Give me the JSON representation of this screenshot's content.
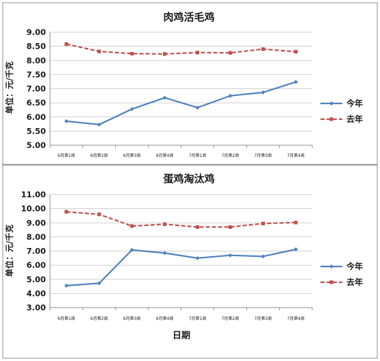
{
  "chart_data": [
    {
      "type": "line",
      "title": "肉鸡活毛鸡",
      "ylabel": "单位：元/千克",
      "xlabel": "",
      "categories": [
        "6月第1周",
        "6月第2周",
        "6月第3周",
        "6月第4周",
        "7月第1周",
        "7月第2周",
        "7月第3周",
        "7月第4周"
      ],
      "ylim": [
        5.0,
        9.0
      ],
      "yticks": [
        "5.00",
        "5.50",
        "6.00",
        "6.50",
        "7.00",
        "7.50",
        "8.00",
        "8.50",
        "9.00"
      ],
      "series": [
        {
          "name": "今年",
          "color": "#4f81bd",
          "dash": false,
          "marker": "diamond",
          "values": [
            5.85,
            5.73,
            6.28,
            6.68,
            6.33,
            6.75,
            6.87,
            7.24
          ]
        },
        {
          "name": "去年",
          "color": "#c0504d",
          "dash": true,
          "marker": "square",
          "values": [
            8.58,
            8.32,
            8.24,
            8.23,
            8.28,
            8.27,
            8.4,
            8.31
          ]
        }
      ],
      "legend": "right",
      "grid": true
    },
    {
      "type": "line",
      "title": "蛋鸡淘汰鸡",
      "ylabel": "单位：元/千克",
      "xlabel": "日期",
      "categories": [
        "6月第1周",
        "6月第2周",
        "6月第3周",
        "6月第4周",
        "7月第1周",
        "7月第2周",
        "7月第3周",
        "7月第4周"
      ],
      "ylim": [
        3.0,
        11.0
      ],
      "yticks": [
        "3.00",
        "4.00",
        "5.00",
        "6.00",
        "7.00",
        "8.00",
        "9.00",
        "10.00",
        "11.00"
      ],
      "series": [
        {
          "name": "今年",
          "color": "#4f81bd",
          "dash": false,
          "marker": "diamond",
          "values": [
            4.55,
            4.72,
            7.08,
            6.86,
            6.5,
            6.7,
            6.62,
            7.12
          ]
        },
        {
          "name": "去年",
          "color": "#c0504d",
          "dash": true,
          "marker": "square",
          "values": [
            9.78,
            9.6,
            8.77,
            8.9,
            8.7,
            8.7,
            8.95,
            9.02
          ]
        }
      ],
      "legend": "right",
      "grid": true
    }
  ]
}
